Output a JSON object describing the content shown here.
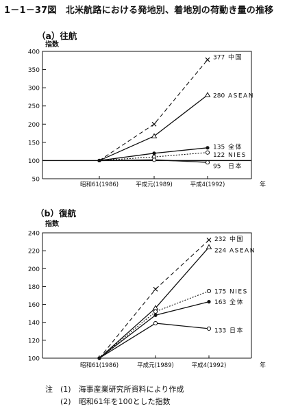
{
  "figure": {
    "title": "1－1－37図　北米航路における発地別、着地別の荷動き量の推移"
  },
  "notes": [
    "注　(1)　海事産業研究所資料により作成",
    "　　(2)　昭和61年を100とした指数"
  ],
  "chart_data": [
    {
      "id": "a",
      "type": "line",
      "title": "（a）往航",
      "ylabel": "指数",
      "xlabel": "年",
      "categories": [
        "昭和61(1986)",
        "平成元(1989)",
        "平成4(1992)"
      ],
      "ylim": [
        50,
        400
      ],
      "yticks": [
        50,
        100,
        150,
        200,
        250,
        300,
        350,
        400
      ],
      "baseline": 100,
      "series": [
        {
          "name": "中国",
          "values": [
            100,
            200,
            377
          ],
          "end_label": "377",
          "style": "dashed",
          "marker": "x"
        },
        {
          "name": "ASEAN",
          "values": [
            100,
            167,
            280
          ],
          "end_label": "280",
          "style": "solid",
          "marker": "triangle"
        },
        {
          "name": "全体",
          "values": [
            100,
            120,
            135
          ],
          "end_label": "135",
          "style": "solid",
          "marker": "dot"
        },
        {
          "name": "NIES",
          "values": [
            100,
            110,
            122
          ],
          "end_label": "122",
          "style": "dotted",
          "marker": "circle"
        },
        {
          "name": "日本",
          "values": [
            100,
            102,
            95
          ],
          "end_label": "95",
          "style": "solid",
          "marker": "circle"
        }
      ]
    },
    {
      "id": "b",
      "type": "line",
      "title": "（b）復航",
      "ylabel": "指数",
      "xlabel": "年",
      "categories": [
        "昭和61(1986)",
        "平成元(1989)",
        "平成4(1992)"
      ],
      "ylim": [
        100,
        240
      ],
      "yticks": [
        100,
        120,
        140,
        160,
        180,
        200,
        220,
        240
      ],
      "series": [
        {
          "name": "中国",
          "values": [
            100,
            177,
            232
          ],
          "end_label": "232",
          "style": "dashed",
          "marker": "x"
        },
        {
          "name": "ASEAN",
          "values": [
            100,
            156,
            224
          ],
          "end_label": "224",
          "style": "solid",
          "marker": "triangle"
        },
        {
          "name": "NIES",
          "values": [
            100,
            152,
            175
          ],
          "end_label": "175",
          "style": "dotted",
          "marker": "circle"
        },
        {
          "name": "全体",
          "values": [
            100,
            148,
            163
          ],
          "end_label": "163",
          "style": "solid",
          "marker": "dot"
        },
        {
          "name": "日本",
          "values": [
            100,
            139,
            133
          ],
          "end_label": "133",
          "style": "solid",
          "marker": "circle"
        }
      ]
    }
  ]
}
